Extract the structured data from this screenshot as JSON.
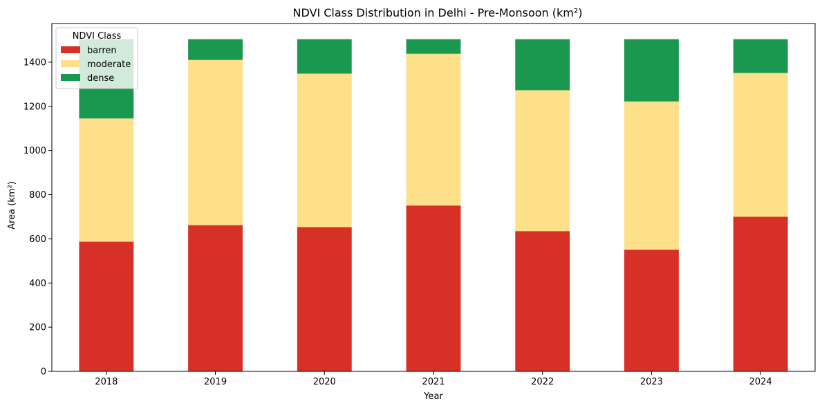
{
  "chart_data": {
    "type": "bar",
    "stacked": true,
    "title": "NDVI Class Distribution in Delhi - Pre-Monsoon (km²)",
    "xlabel": "Year",
    "ylabel": "Area (km²)",
    "categories": [
      "2018",
      "2019",
      "2020",
      "2021",
      "2022",
      "2023",
      "2024"
    ],
    "ylim": [
      0,
      1575
    ],
    "yticks": [
      0,
      200,
      400,
      600,
      800,
      1000,
      1200,
      1400
    ],
    "grid": false,
    "legend": {
      "title": "NDVI Class",
      "placement": "top-left"
    },
    "series": [
      {
        "name": "barren",
        "color": "#d73027",
        "values": [
          587,
          662,
          653,
          751,
          635,
          551,
          700
        ]
      },
      {
        "name": "moderate",
        "color": "#fee08b",
        "values": [
          558,
          748,
          695,
          687,
          638,
          671,
          651
        ]
      },
      {
        "name": "dense",
        "color": "#1a9850",
        "values": [
          359,
          94,
          156,
          66,
          231,
          282,
          153
        ]
      }
    ]
  }
}
